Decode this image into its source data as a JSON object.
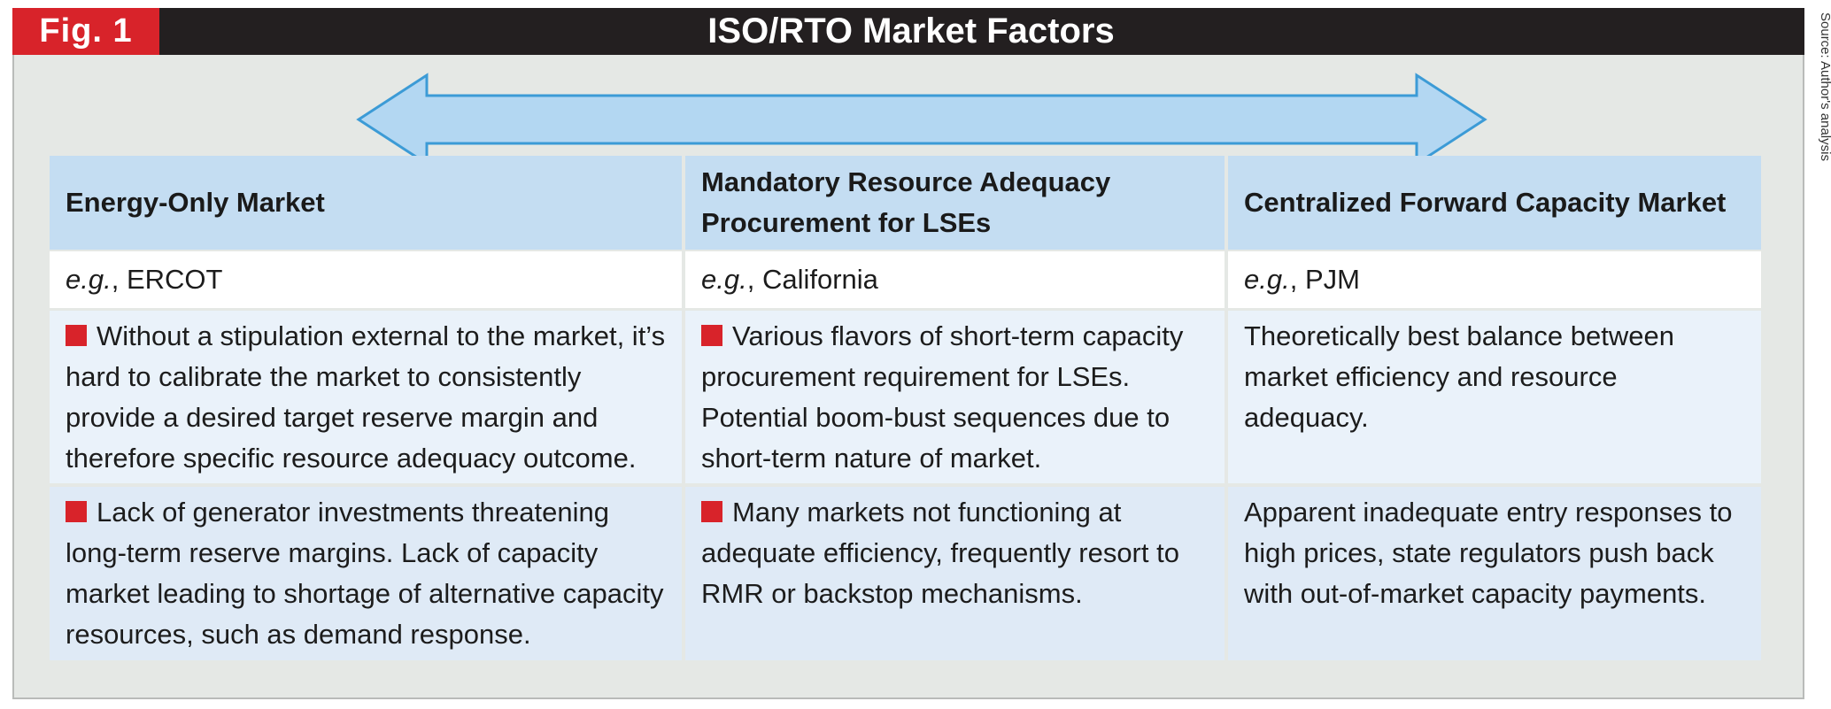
{
  "figure": {
    "label": "Fig. 1",
    "title": "ISO/RTO Market Factors",
    "source": "Source: Author's analysis"
  },
  "colors": {
    "header_bar": "#231f20",
    "label_red": "#d8232a",
    "arrow_fill": "#b3d7f2",
    "arrow_stroke": "#3c9bd6",
    "header_cell": "#c4ddf2",
    "bullet": "#d8232a"
  },
  "table": {
    "headers": [
      "Energy-Only Market",
      "Mandatory Resource Adequacy Procurement for LSEs",
      "Centralized Forward Capacity Market"
    ],
    "example_prefix": "e.g.",
    "examples": [
      ", ERCOT",
      ", California",
      ", PJM"
    ],
    "rows": [
      [
        "Without a stipulation external to the market, it’s hard to calibrate the market to consistently provide a desired target reserve margin and therefore specific resource adequacy outcome.",
        "Various flavors of short-term capacity procurement requirement for LSEs. Potential boom-bust sequences due to short-term nature of market.",
        "Theoretically best balance between market efficiency and resource adequacy."
      ],
      [
        "Lack of generator investments threatening long-term reserve margins. Lack of capacity market leading to shortage of alternative capacity resources, such as demand response.",
        "Many markets not functioning at adequate efficiency, frequently resort to RMR or backstop mechanisms.",
        "Apparent inadequate entry responses to high prices, state regulators push back with out-of-market capacity payments."
      ]
    ]
  }
}
